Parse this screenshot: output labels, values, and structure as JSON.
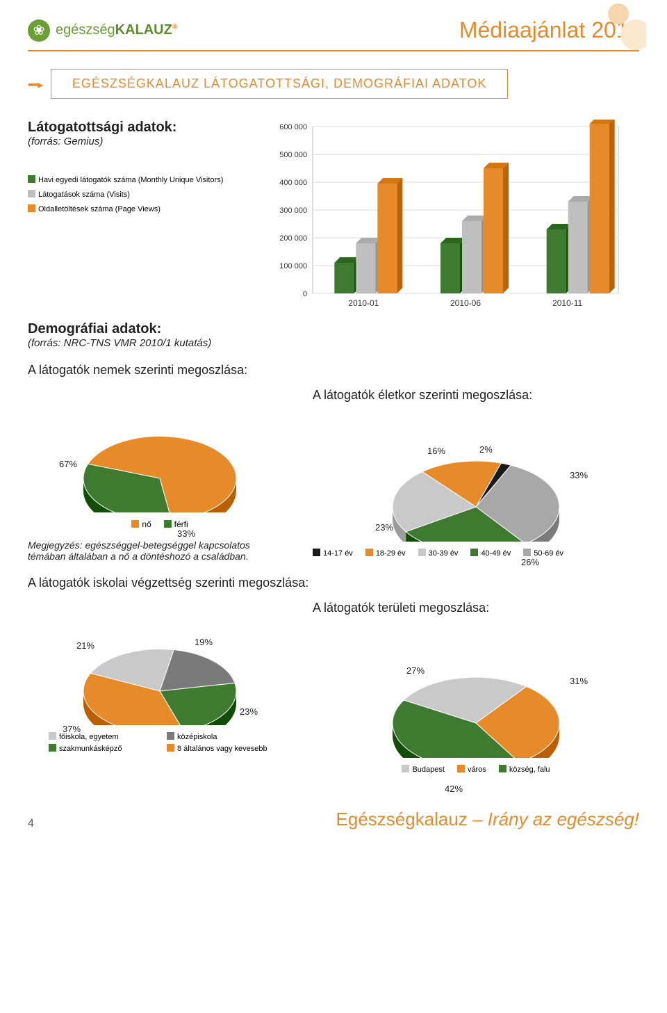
{
  "brand": {
    "part1": "egészség",
    "part2": "KALAUZ"
  },
  "header_title": "Médiaajánlat 2011",
  "box_title": "EGÉSZSÉGKALAUZ LÁTOGATOTTSÁGI, DEMOGRÁFIAI ADATOK",
  "traffic": {
    "heading": "Látogatottsági adatok:",
    "source": "(forrás: Gemius)",
    "legend": [
      {
        "label": "Havi egyedi látogatók száma (Monthly Unique Visitors)",
        "color": "#3e7a2f"
      },
      {
        "label": "Látogatások száma (Visits)",
        "color": "#bfbfbf"
      },
      {
        "label": "Oldalletöltések száma (Page Views)",
        "color": "#e78b2a"
      }
    ]
  },
  "bar_chart": {
    "type": "bar",
    "y_ticks": [
      "0",
      "100 000",
      "200 000",
      "300 000",
      "400 000",
      "500 000",
      "600 000"
    ],
    "ymax": 600000,
    "categories": [
      "2010-01",
      "2010-06",
      "2010-11"
    ],
    "series": [
      {
        "color": "#3e7a2f",
        "values": [
          110000,
          180000,
          230000
        ]
      },
      {
        "color": "#bfbfbf",
        "values": [
          180000,
          260000,
          330000
        ]
      },
      {
        "color": "#e78b2a",
        "values": [
          395000,
          450000,
          610000
        ]
      }
    ],
    "grid_color": "#dcdcdc",
    "background_color": "#ffffff"
  },
  "demog": {
    "heading": "Demográfiai adatok:",
    "source": "(forrás: NRC-TNS VMR 2010/1 kutatás)"
  },
  "gender": {
    "title": "A látogatók nemek szerinti megoszlása:",
    "slices": [
      {
        "label": "67%",
        "value": 67,
        "color": "#e78b2a"
      },
      {
        "label": "33%",
        "value": 33,
        "color": "#3e7a2f"
      }
    ],
    "legend": [
      {
        "label": "nő",
        "color": "#e78b2a"
      },
      {
        "label": "férfi",
        "color": "#3e7a2f"
      }
    ],
    "note": "Megjegyzés: egészséggel-betegséggel kapcsolatos témában általában a nő a döntéshozó a családban."
  },
  "age": {
    "title": "A látogatók életkor szerinti megoszlása:",
    "slices": [
      {
        "label": "16%",
        "value": 16,
        "color": "#e78b2a"
      },
      {
        "label": "2%",
        "value": 2,
        "color": "#1a1a1a"
      },
      {
        "label": "33%",
        "value": 33,
        "color": "#a8a8a8"
      },
      {
        "label": "26%",
        "value": 26,
        "color": "#3e7a2f"
      },
      {
        "label": "23%",
        "value": 23,
        "color": "#c9c9c9"
      }
    ],
    "legend": [
      {
        "label": "14-17 év",
        "color": "#1a1a1a"
      },
      {
        "label": "18-29 év",
        "color": "#e78b2a"
      },
      {
        "label": "30-39 év",
        "color": "#c9c9c9"
      },
      {
        "label": "40-49 év",
        "color": "#3e7a2f"
      },
      {
        "label": "50-69 év",
        "color": "#a8a8a8"
      }
    ]
  },
  "edu": {
    "title": "A látogatók iskolai végzettség szerinti megoszlása:",
    "slices": [
      {
        "label": "21%",
        "value": 21,
        "color": "#c9c9c9"
      },
      {
        "label": "19%",
        "value": 19,
        "color": "#7a7a7a"
      },
      {
        "label": "23%",
        "value": 23,
        "color": "#3e7a2f"
      },
      {
        "label": "37%",
        "value": 37,
        "color": "#e78b2a"
      }
    ],
    "legend": [
      {
        "label": "főiskola, egyetem",
        "color": "#c9c9c9"
      },
      {
        "label": "középiskola",
        "color": "#7a7a7a"
      },
      {
        "label": "szakmunkásképző",
        "color": "#3e7a2f"
      },
      {
        "label": "8 általános vagy kevesebb",
        "color": "#e78b2a"
      }
    ]
  },
  "region": {
    "title": "A látogatók területi megoszlása:",
    "slices": [
      {
        "label": "27%",
        "value": 27,
        "color": "#c9c9c9"
      },
      {
        "label": "31%",
        "value": 31,
        "color": "#e78b2a"
      },
      {
        "label": "42%",
        "value": 42,
        "color": "#3e7a2f"
      }
    ],
    "legend": [
      {
        "label": "Budapest",
        "color": "#c9c9c9"
      },
      {
        "label": "város",
        "color": "#e78b2a"
      },
      {
        "label": "község, falu",
        "color": "#3e7a2f"
      }
    ]
  },
  "footer": {
    "page": "4",
    "tagline1": "Egészségkalauz – ",
    "tagline2": "Irány az egészség!"
  }
}
